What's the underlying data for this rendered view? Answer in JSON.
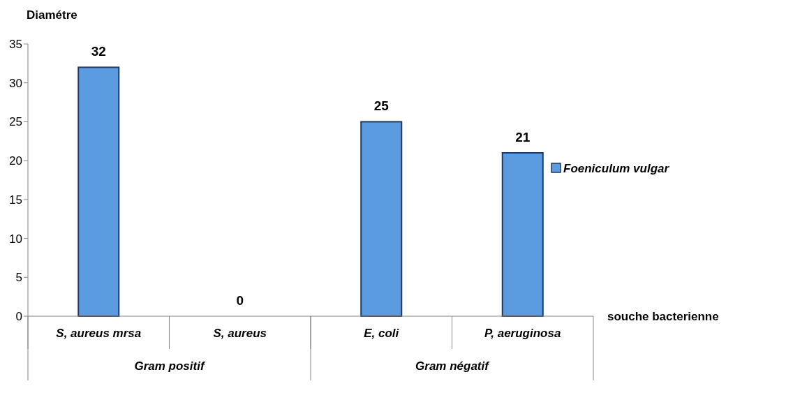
{
  "chart_data": {
    "type": "bar",
    "xlabel": "souche bacterienne",
    "ylabel": "Diamétre",
    "categories": [
      "S,  aureus mrsa",
      "S,  aureus",
      "E,  coli",
      "P, aeruginosa"
    ],
    "series": [
      {
        "name": "Foeniculum vulgar",
        "color": "#5b9be0",
        "values": [
          32,
          0,
          25,
          21
        ]
      }
    ],
    "ylim": [
      0,
      35
    ],
    "yticks": [
      0,
      5,
      10,
      15,
      20,
      25,
      30,
      35
    ],
    "data_labels": true,
    "legend": "right",
    "annotations": [
      "Gram positif",
      "Gram négatif"
    ]
  }
}
